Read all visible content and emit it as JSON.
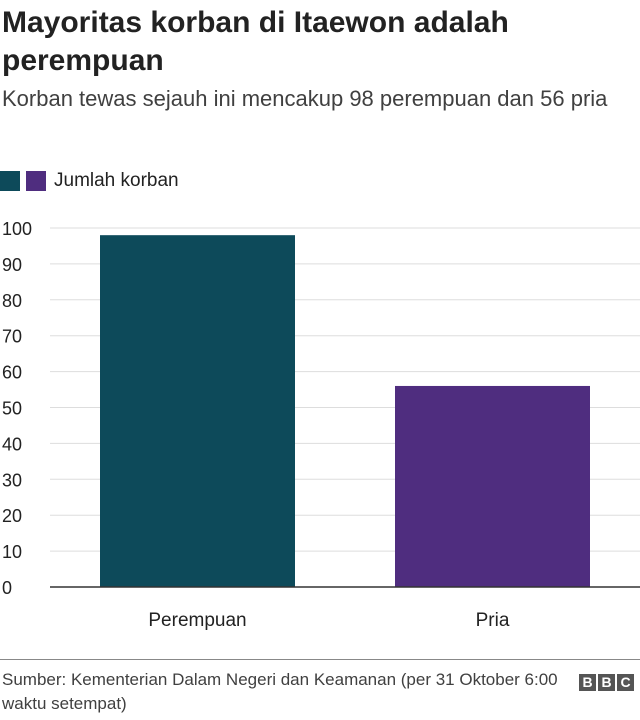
{
  "header": {
    "title": "Mayoritas korban di Itaewon adalah perempuan",
    "subtitle": "Korban tewas sejauh ini mencakup 98 perempuan dan 56 pria"
  },
  "legend": {
    "label": "Jumlah korban"
  },
  "footer": {
    "source": "Sumber: Kementerian Dalam Negeri dan Keamanan (per 31 Oktober 6:00 waktu setempat)",
    "logo_letters": [
      "B",
      "B",
      "C"
    ]
  },
  "colors": {
    "perempuan": "#0d4a5a",
    "pria": "#4f2d7f",
    "axis": "#333333",
    "grid": "#dddddd"
  },
  "chart_data": {
    "type": "bar",
    "categories": [
      "Perempuan",
      "Pria"
    ],
    "values": [
      98,
      56
    ],
    "bar_colors": [
      "#0d4a5a",
      "#4f2d7f"
    ],
    "title": "Mayoritas korban di Itaewon adalah perempuan",
    "subtitle": "Korban tewas sejauh ini mencakup 98 perempuan dan 56 pria",
    "xlabel": "",
    "ylabel": "",
    "ylim": [
      0,
      100
    ],
    "yticks": [
      0,
      10,
      20,
      30,
      40,
      50,
      60,
      70,
      80,
      90,
      100
    ],
    "legend": [
      "Jumlah korban"
    ],
    "legend_position": "top-left",
    "grid": true
  }
}
